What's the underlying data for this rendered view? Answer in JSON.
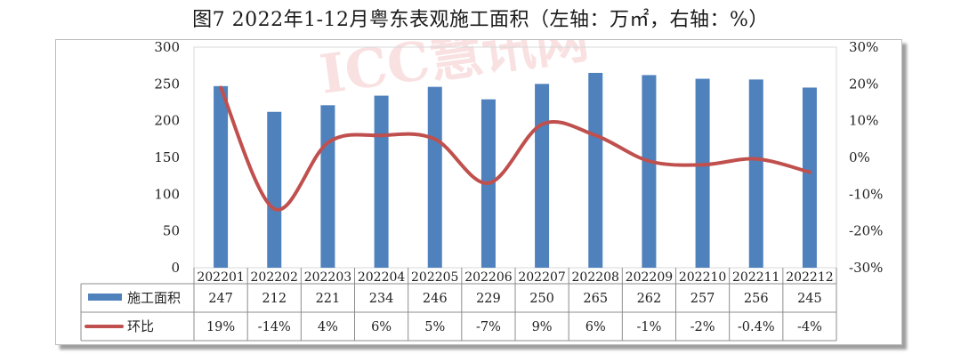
{
  "title": "图7 2022年1-12月粤东表观施工面积（左轴：万㎡，右轴：%）",
  "watermark": "ICC慧讯网",
  "colors": {
    "bar": "#4f81bd",
    "line": "#c0504d",
    "grid": "#d9d9d9",
    "axis": "#8c8c8c",
    "watermark": "#e0454b"
  },
  "chart_data": {
    "type": "bar+line",
    "categories": [
      "202201",
      "202202",
      "202203",
      "202204",
      "202205",
      "202206",
      "202207",
      "202208",
      "202209",
      "202210",
      "202211",
      "202212"
    ],
    "series": [
      {
        "name": "施工面积",
        "type": "bar",
        "axis": "left",
        "values": [
          247,
          212,
          221,
          234,
          246,
          229,
          250,
          265,
          262,
          257,
          256,
          245
        ]
      },
      {
        "name": "环比",
        "type": "line",
        "axis": "right",
        "values": [
          19,
          -14,
          4,
          6,
          5,
          -7,
          9,
          6,
          -1,
          -2,
          -0.4,
          -4
        ],
        "labels": [
          "19%",
          "-14%",
          "4%",
          "6%",
          "5%",
          "-7%",
          "9%",
          "6%",
          "-1%",
          "-2%",
          "-0.4%",
          "-4%"
        ]
      }
    ],
    "left_axis": {
      "ylim": [
        0,
        300
      ],
      "ticks": [
        "0",
        "50",
        "100",
        "150",
        "200",
        "250",
        "300"
      ]
    },
    "right_axis": {
      "ylim": [
        -30,
        30
      ],
      "ticks": [
        "-30%",
        "-20%",
        "-10%",
        "0%",
        "10%",
        "20%",
        "30%"
      ]
    },
    "grid": false,
    "legend": "data-table-bottom"
  }
}
